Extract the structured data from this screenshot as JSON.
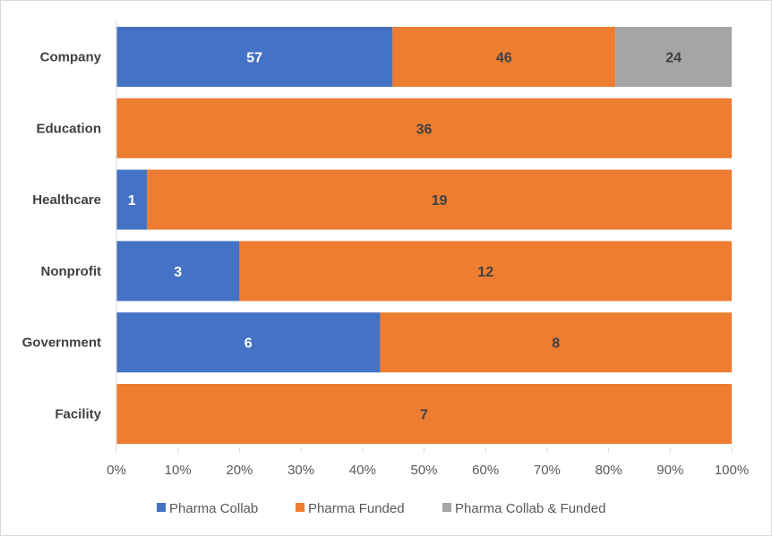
{
  "chart_data": {
    "type": "bar",
    "orientation": "horizontal",
    "stacked": "percent",
    "categories": [
      "Company",
      "Education",
      "Healthcare",
      "Nonprofit",
      "Government",
      "Facility"
    ],
    "series": [
      {
        "name": "Pharma Collab",
        "color": "#4472C4",
        "label_color": "#FFFFFF",
        "values": [
          57,
          0,
          1,
          3,
          6,
          0
        ]
      },
      {
        "name": "Pharma Funded",
        "color": "#ED7D31",
        "label_color": "#404040",
        "values": [
          46,
          36,
          19,
          12,
          8,
          7
        ]
      },
      {
        "name": "Pharma Collab & Funded",
        "color": "#A5A5A5",
        "label_color": "#404040",
        "values": [
          24,
          0,
          0,
          0,
          0,
          0
        ]
      }
    ],
    "x_ticks": [
      "0%",
      "10%",
      "20%",
      "30%",
      "40%",
      "50%",
      "60%",
      "70%",
      "80%",
      "90%",
      "100%"
    ],
    "xlim": [
      0,
      100
    ],
    "grid": false,
    "legend": "bottom",
    "title": "",
    "xlabel": "",
    "ylabel": ""
  }
}
